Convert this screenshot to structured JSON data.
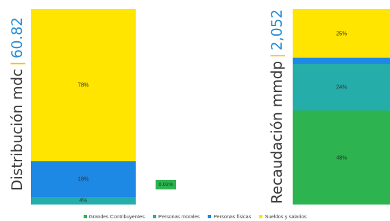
{
  "colors": {
    "grandes": "#2db34f",
    "morales": "#25ada9",
    "fisicas": "#1e88e5",
    "sueldos": "#ffe500",
    "title_value": "#2a8fd8",
    "title_sep": "#f5c200"
  },
  "chart_data": [
    {
      "type": "bar",
      "stacked": true,
      "title_text": "Distribución mdc",
      "title_value": "60.82",
      "series": [
        {
          "name": "Grandes Contribuyentes",
          "value": 0.02,
          "label": "0.02%"
        },
        {
          "name": "Personas morales",
          "value": 4,
          "label": "4%"
        },
        {
          "name": "Personas físicas",
          "value": 18,
          "label": "18%"
        },
        {
          "name": "Sueldos y salarios",
          "value": 78,
          "label": "78%"
        }
      ]
    },
    {
      "type": "bar",
      "stacked": true,
      "title_text": "Recaudación mmdp",
      "title_value": "2,052",
      "series": [
        {
          "name": "Grandes Contribuyentes",
          "value": 48,
          "label": "48%"
        },
        {
          "name": "Personas morales",
          "value": 24,
          "label": "24%"
        },
        {
          "name": "Personas físicas",
          "value": 3,
          "label": ""
        },
        {
          "name": "Sueldos y salarios",
          "value": 25,
          "label": "25%"
        }
      ]
    }
  ],
  "legend": [
    {
      "key": "grandes",
      "label": "Grandes Contribuyentes"
    },
    {
      "key": "morales",
      "label": "Personas morales"
    },
    {
      "key": "fisicas",
      "label": "Personas físicas"
    },
    {
      "key": "sueldos",
      "label": "Sueldos y salarios"
    }
  ]
}
